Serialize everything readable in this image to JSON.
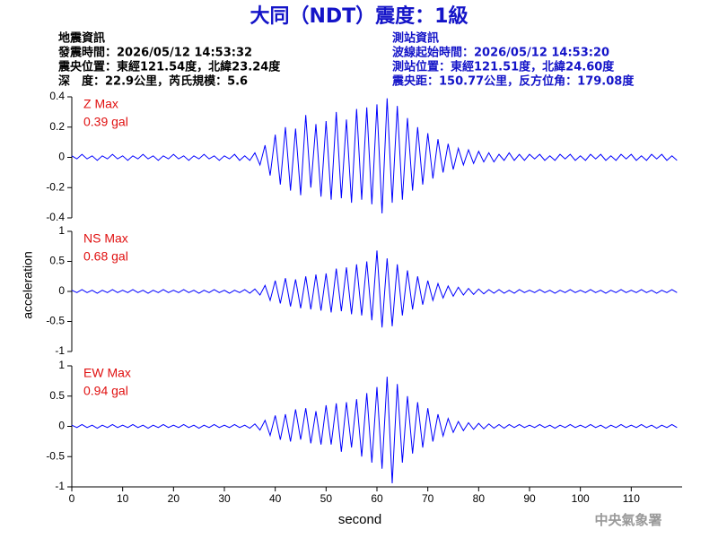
{
  "chart_data": {
    "type": "line",
    "title": "大同（NDT）震度：1級",
    "info_left": [
      "地震資訊",
      "發震時間：2026/05/12 14:53:32",
      "震央位置：東經121.54度，北緯23.24度",
      "深　度：22.9公里，芮氏規模：5.6"
    ],
    "info_right": [
      "測站資訊",
      "波線起始時間：2026/05/12 14:53:20",
      "測站位置：東經121.51度，北緯24.60度",
      "震央距：150.77公里，反方位角：179.08度"
    ],
    "x_label": "second",
    "y_label": "acceleration",
    "footer": "中央氣象署",
    "xlim": [
      0,
      120
    ],
    "xticks": [
      0,
      10,
      20,
      30,
      40,
      50,
      60,
      70,
      80,
      90,
      100,
      110
    ],
    "x": [
      0,
      1,
      2,
      3,
      4,
      5,
      6,
      7,
      8,
      9,
      10,
      11,
      12,
      13,
      14,
      15,
      16,
      17,
      18,
      19,
      20,
      21,
      22,
      23,
      24,
      25,
      26,
      27,
      28,
      29,
      30,
      31,
      32,
      33,
      34,
      35,
      36,
      37,
      38,
      39,
      40,
      41,
      42,
      43,
      44,
      45,
      46,
      47,
      48,
      49,
      50,
      51,
      52,
      53,
      54,
      55,
      56,
      57,
      58,
      59,
      60,
      61,
      62,
      63,
      64,
      65,
      66,
      67,
      68,
      69,
      70,
      71,
      72,
      73,
      74,
      75,
      76,
      77,
      78,
      79,
      80,
      81,
      82,
      83,
      84,
      85,
      86,
      87,
      88,
      89,
      90,
      91,
      92,
      93,
      94,
      95,
      96,
      97,
      98,
      99,
      100,
      101,
      102,
      103,
      104,
      105,
      106,
      107,
      108,
      109,
      110,
      111,
      112,
      113,
      114,
      115,
      116,
      117,
      118,
      119
    ],
    "series": [
      {
        "name": "Z Max",
        "max_label": "0.39 gal",
        "color": "#0000ff",
        "ylim": [
          -0.4,
          0.4
        ],
        "yticks": [
          -0.4,
          -0.2,
          0,
          0.2,
          0.4
        ],
        "values": [
          0.01,
          -0.01,
          0.02,
          -0.01,
          0.01,
          -0.02,
          0.01,
          -0.01,
          0.02,
          -0.01,
          0.01,
          -0.02,
          0.01,
          -0.01,
          0.02,
          -0.01,
          0.01,
          -0.02,
          0.01,
          -0.01,
          0.02,
          -0.01,
          0.01,
          -0.02,
          0.01,
          -0.01,
          0.02,
          -0.01,
          0.01,
          -0.02,
          0.01,
          -0.01,
          0.02,
          -0.02,
          0.01,
          -0.02,
          0.03,
          -0.05,
          0.08,
          -0.12,
          0.15,
          -0.18,
          0.2,
          -0.22,
          0.19,
          -0.25,
          0.28,
          -0.2,
          0.22,
          -0.26,
          0.24,
          -0.28,
          0.3,
          -0.27,
          0.25,
          -0.3,
          0.32,
          -0.28,
          0.33,
          -0.31,
          0.35,
          -0.37,
          0.39,
          -0.3,
          0.34,
          -0.28,
          0.26,
          -0.22,
          0.2,
          -0.18,
          0.16,
          -0.14,
          0.12,
          -0.1,
          0.09,
          -0.08,
          0.06,
          -0.05,
          0.05,
          -0.04,
          0.04,
          -0.03,
          0.03,
          -0.03,
          0.02,
          -0.02,
          0.03,
          -0.02,
          0.02,
          -0.02,
          0.02,
          -0.01,
          0.02,
          -0.02,
          0.01,
          -0.02,
          0.02,
          -0.01,
          0.02,
          -0.02,
          0.01,
          -0.02,
          0.02,
          -0.01,
          0.02,
          -0.02,
          0.01,
          -0.02,
          0.02,
          -0.01,
          0.02,
          -0.02,
          0.01,
          -0.02,
          0.02,
          -0.01,
          0.02,
          -0.02,
          0.01,
          -0.02
        ]
      },
      {
        "name": "NS Max",
        "max_label": "0.68 gal",
        "color": "#0000ff",
        "ylim": [
          -1,
          1
        ],
        "yticks": [
          -1,
          -0.5,
          0,
          0.5,
          1
        ],
        "values": [
          0.02,
          -0.02,
          0.03,
          -0.02,
          0.02,
          -0.03,
          0.02,
          -0.02,
          0.03,
          -0.02,
          0.02,
          -0.02,
          0.03,
          -0.02,
          0.02,
          -0.03,
          0.02,
          -0.02,
          0.03,
          -0.02,
          0.02,
          -0.02,
          0.03,
          -0.02,
          0.02,
          -0.03,
          0.02,
          -0.02,
          0.03,
          -0.02,
          0.02,
          -0.03,
          0.02,
          -0.02,
          0.03,
          -0.03,
          0.04,
          -0.06,
          0.1,
          -0.15,
          0.18,
          -0.2,
          0.22,
          -0.25,
          0.2,
          -0.28,
          0.25,
          -0.3,
          0.28,
          -0.32,
          0.3,
          -0.35,
          0.38,
          -0.33,
          0.4,
          -0.38,
          0.45,
          -0.4,
          0.5,
          -0.48,
          0.68,
          -0.6,
          0.55,
          -0.58,
          0.45,
          -0.4,
          0.35,
          -0.3,
          0.25,
          -0.22,
          0.18,
          -0.15,
          0.13,
          -0.11,
          0.09,
          -0.08,
          0.07,
          -0.06,
          0.05,
          -0.05,
          0.04,
          -0.04,
          0.03,
          -0.03,
          0.03,
          -0.03,
          0.02,
          -0.03,
          0.03,
          -0.02,
          0.02,
          -0.02,
          0.03,
          -0.02,
          0.02,
          -0.03,
          0.02,
          -0.02,
          0.03,
          -0.02,
          0.02,
          -0.02,
          0.03,
          -0.02,
          0.02,
          -0.03,
          0.02,
          -0.02,
          0.03,
          -0.02,
          0.02,
          -0.02,
          0.03,
          -0.02,
          0.02,
          -0.03,
          0.02,
          -0.02,
          0.03,
          -0.02
        ]
      },
      {
        "name": "EW Max",
        "max_label": "0.94 gal",
        "color": "#0000ff",
        "ylim": [
          -1,
          1
        ],
        "yticks": [
          -1,
          -0.5,
          0,
          0.5,
          1
        ],
        "values": [
          0.02,
          -0.02,
          0.03,
          -0.02,
          0.02,
          -0.03,
          0.02,
          -0.02,
          0.03,
          -0.02,
          0.02,
          -0.02,
          0.03,
          -0.02,
          0.02,
          -0.03,
          0.02,
          -0.02,
          0.03,
          -0.02,
          0.02,
          -0.02,
          0.03,
          -0.02,
          0.02,
          -0.03,
          0.02,
          -0.02,
          0.03,
          -0.02,
          0.02,
          -0.02,
          0.03,
          -0.02,
          0.02,
          -0.03,
          0.04,
          -0.06,
          0.1,
          -0.15,
          0.18,
          -0.22,
          0.2,
          -0.25,
          0.28,
          -0.22,
          0.3,
          -0.28,
          0.25,
          -0.3,
          0.35,
          -0.3,
          0.38,
          -0.42,
          0.4,
          -0.35,
          0.45,
          -0.5,
          0.55,
          -0.6,
          0.65,
          -0.7,
          0.82,
          -0.94,
          0.7,
          -0.6,
          0.5,
          -0.45,
          0.4,
          -0.35,
          0.3,
          -0.25,
          0.2,
          -0.16,
          0.13,
          -0.1,
          0.08,
          -0.07,
          0.06,
          -0.05,
          0.05,
          -0.04,
          0.04,
          -0.03,
          0.03,
          -0.03,
          0.03,
          -0.02,
          0.03,
          -0.02,
          0.02,
          -0.02,
          0.03,
          -0.02,
          0.02,
          -0.03,
          0.02,
          -0.02,
          0.03,
          -0.02,
          0.02,
          -0.02,
          0.03,
          -0.02,
          0.02,
          -0.03,
          0.02,
          -0.02,
          0.03,
          -0.02,
          0.02,
          -0.02,
          0.03,
          -0.02,
          0.02,
          -0.03,
          0.02,
          -0.02,
          0.03,
          -0.02
        ]
      }
    ]
  }
}
